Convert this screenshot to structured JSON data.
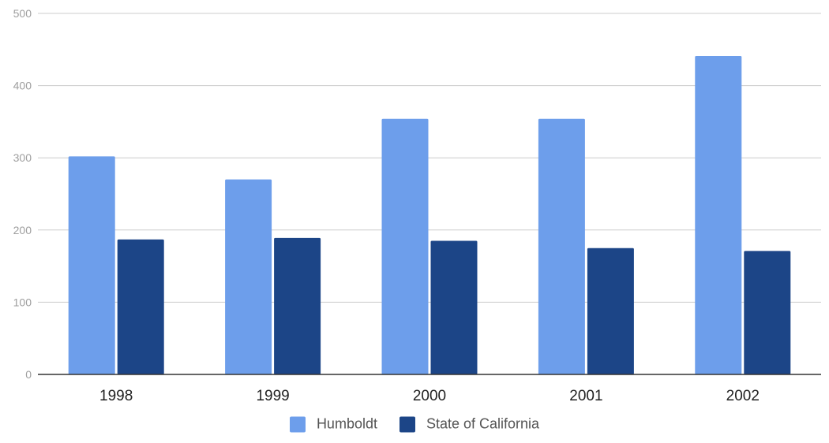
{
  "chart_data": {
    "type": "bar",
    "categories": [
      "1998",
      "1999",
      "2000",
      "2001",
      "2002"
    ],
    "series": [
      {
        "name": "Humboldt",
        "values": [
          302,
          270,
          354,
          354,
          441
        ],
        "color": "#6d9eeb"
      },
      {
        "name": "State of California",
        "values": [
          187,
          189,
          185,
          175,
          171
        ],
        "color": "#1c4587"
      }
    ],
    "ylim": [
      0,
      500
    ],
    "yticks": [
      "0",
      "100",
      "200",
      "300",
      "400",
      "500"
    ],
    "grid": true,
    "legend_position": "bottom",
    "title": "",
    "xlabel": "",
    "ylabel": ""
  }
}
